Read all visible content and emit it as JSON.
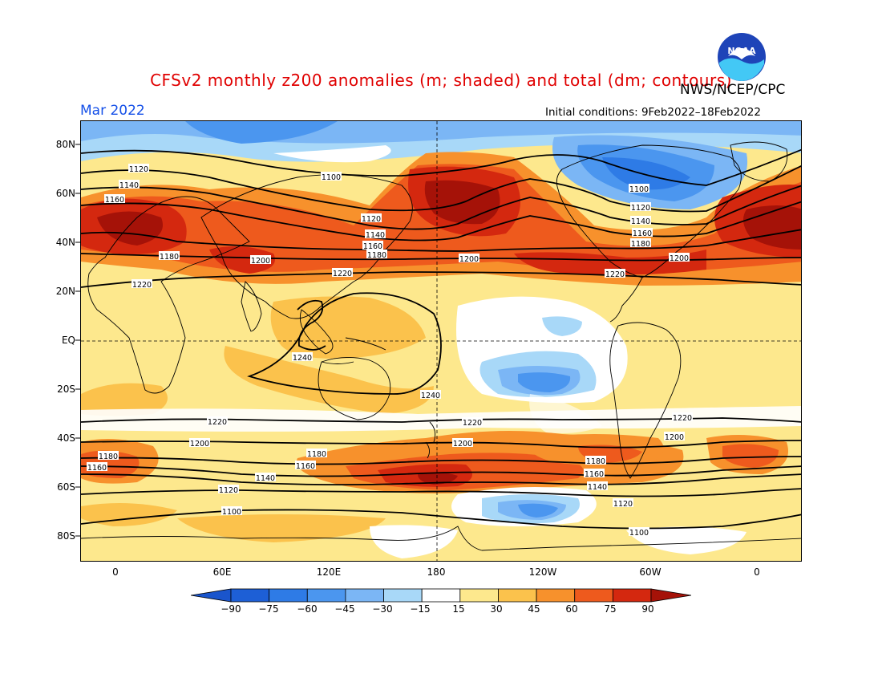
{
  "title": "CFSv2 monthly z200 anomalies (m; shaded) and total (dm; contours)",
  "agency": "NWS/NCEP/CPC",
  "logo_text": "NOAA",
  "month": "Mar 2022",
  "initial_conditions": "Initial conditions: 9Feb2022–18Feb2022",
  "lat_labels": [
    "80N",
    "60N",
    "40N",
    "20N",
    "EQ",
    "20S",
    "40S",
    "60S",
    "80S"
  ],
  "lon_labels": [
    "0",
    "60E",
    "120E",
    "180",
    "120W",
    "60W",
    "0"
  ],
  "colorbar": {
    "labels": [
      "−90",
      "−75",
      "−60",
      "−45",
      "−30",
      "−15",
      "15",
      "30",
      "45",
      "60",
      "75",
      "90"
    ],
    "colors": [
      "#1d5fd6",
      "#2e7be6",
      "#4b96ef",
      "#7bb6f5",
      "#a8d8f8",
      "#ffffff",
      "#fde88d",
      "#fbc24c",
      "#f7912c",
      "#ee5a1d",
      "#d4280f"
    ],
    "low_end_color": "#1a55cc",
    "high_end_color": "#a51208"
  },
  "contour_labels": {
    "c1100": "1100",
    "c1120": "1120",
    "c1140": "1140",
    "c1160": "1160",
    "c1180": "1180",
    "c1200": "1200",
    "c1220": "1220",
    "c1240": "1240"
  }
}
